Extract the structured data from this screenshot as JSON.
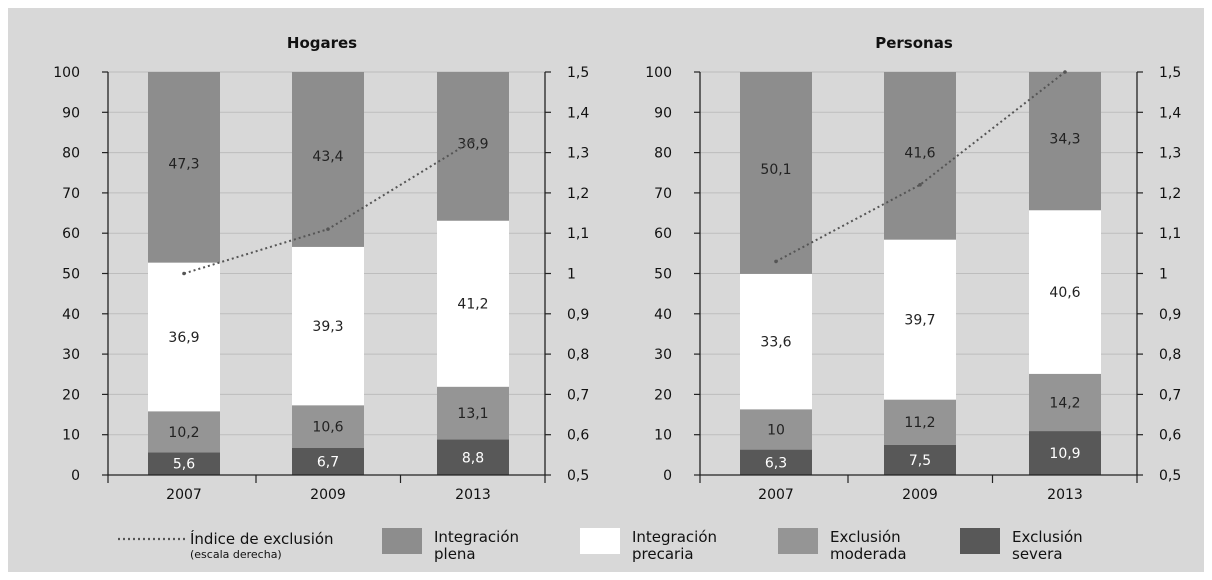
{
  "colors": {
    "background": "#d8d8d8",
    "integracion_plena": "#8d8d8d",
    "integracion_precaria": "#ffffff",
    "exclusion_moderada": "#959595",
    "exclusion_severa": "#585858",
    "index_line": "#555555"
  },
  "legend": {
    "index_label": "Índice de exclusión",
    "index_sublabel": "(escala derecha)",
    "plena_1": "Integración",
    "plena_2": "plena",
    "precaria_1": "Integración",
    "precaria_2": "precaria",
    "moderada_1": "Exclusión",
    "moderada_2": "moderada",
    "severa_1": "Exclusión",
    "severa_2": "severa"
  },
  "chart_data": [
    {
      "type": "bar",
      "stacked": true,
      "title": "Hogares",
      "categories": [
        "2007",
        "2009",
        "2013"
      ],
      "ylim": [
        0,
        100
      ],
      "y_ticks": [
        "0",
        "10",
        "20",
        "30",
        "40",
        "50",
        "60",
        "70",
        "80",
        "90",
        "100"
      ],
      "y2lim": [
        0.5,
        1.5
      ],
      "y2_ticks": [
        "0,5",
        "0,6",
        "0,7",
        "0,8",
        "0,9",
        "1",
        "1,1",
        "1,2",
        "1,3",
        "1,4",
        "1,5"
      ],
      "series": [
        {
          "name": "Exclusión severa",
          "values": [
            5.6,
            6.7,
            8.8
          ],
          "labels": [
            "5,6",
            "6,7",
            "8,8"
          ]
        },
        {
          "name": "Exclusión moderada",
          "values": [
            10.2,
            10.6,
            13.1
          ],
          "labels": [
            "10,2",
            "10,6",
            "13,1"
          ]
        },
        {
          "name": "Integración precaria",
          "values": [
            36.9,
            39.3,
            41.2
          ],
          "labels": [
            "36,9",
            "39,3",
            "41,2"
          ]
        },
        {
          "name": "Integración plena",
          "values": [
            47.3,
            43.4,
            36.9
          ],
          "labels": [
            "47,3",
            "43,4",
            "36,9"
          ]
        }
      ],
      "line": {
        "name": "Índice de exclusión (escala derecha)",
        "axis": "right",
        "values": [
          1.0,
          1.11,
          1.33
        ]
      }
    },
    {
      "type": "bar",
      "stacked": true,
      "title": "Personas",
      "categories": [
        "2007",
        "2009",
        "2013"
      ],
      "ylim": [
        0,
        100
      ],
      "y_ticks": [
        "0",
        "10",
        "20",
        "30",
        "40",
        "50",
        "60",
        "70",
        "80",
        "90",
        "100"
      ],
      "y2lim": [
        0.5,
        1.5
      ],
      "y2_ticks": [
        "0,5",
        "0,6",
        "0,7",
        "0,8",
        "0,9",
        "1",
        "1,1",
        "1,2",
        "1,3",
        "1,4",
        "1,5"
      ],
      "series": [
        {
          "name": "Exclusión severa",
          "values": [
            6.3,
            7.5,
            10.9
          ],
          "labels": [
            "6,3",
            "7,5",
            "10,9"
          ]
        },
        {
          "name": "Exclusión moderada",
          "values": [
            10,
            11.2,
            14.2
          ],
          "labels": [
            "10",
            "11,2",
            "14,2"
          ]
        },
        {
          "name": "Integración precaria",
          "values": [
            33.6,
            39.7,
            40.6
          ],
          "labels": [
            "33,6",
            "39,7",
            "40,6"
          ]
        },
        {
          "name": "Integración plena",
          "values": [
            50.1,
            41.6,
            34.3
          ],
          "labels": [
            "50,1",
            "41,6",
            "34,3"
          ]
        }
      ],
      "line": {
        "name": "Índice de exclusión (escala derecha)",
        "axis": "right",
        "values": [
          1.03,
          1.22,
          1.5
        ]
      }
    }
  ]
}
